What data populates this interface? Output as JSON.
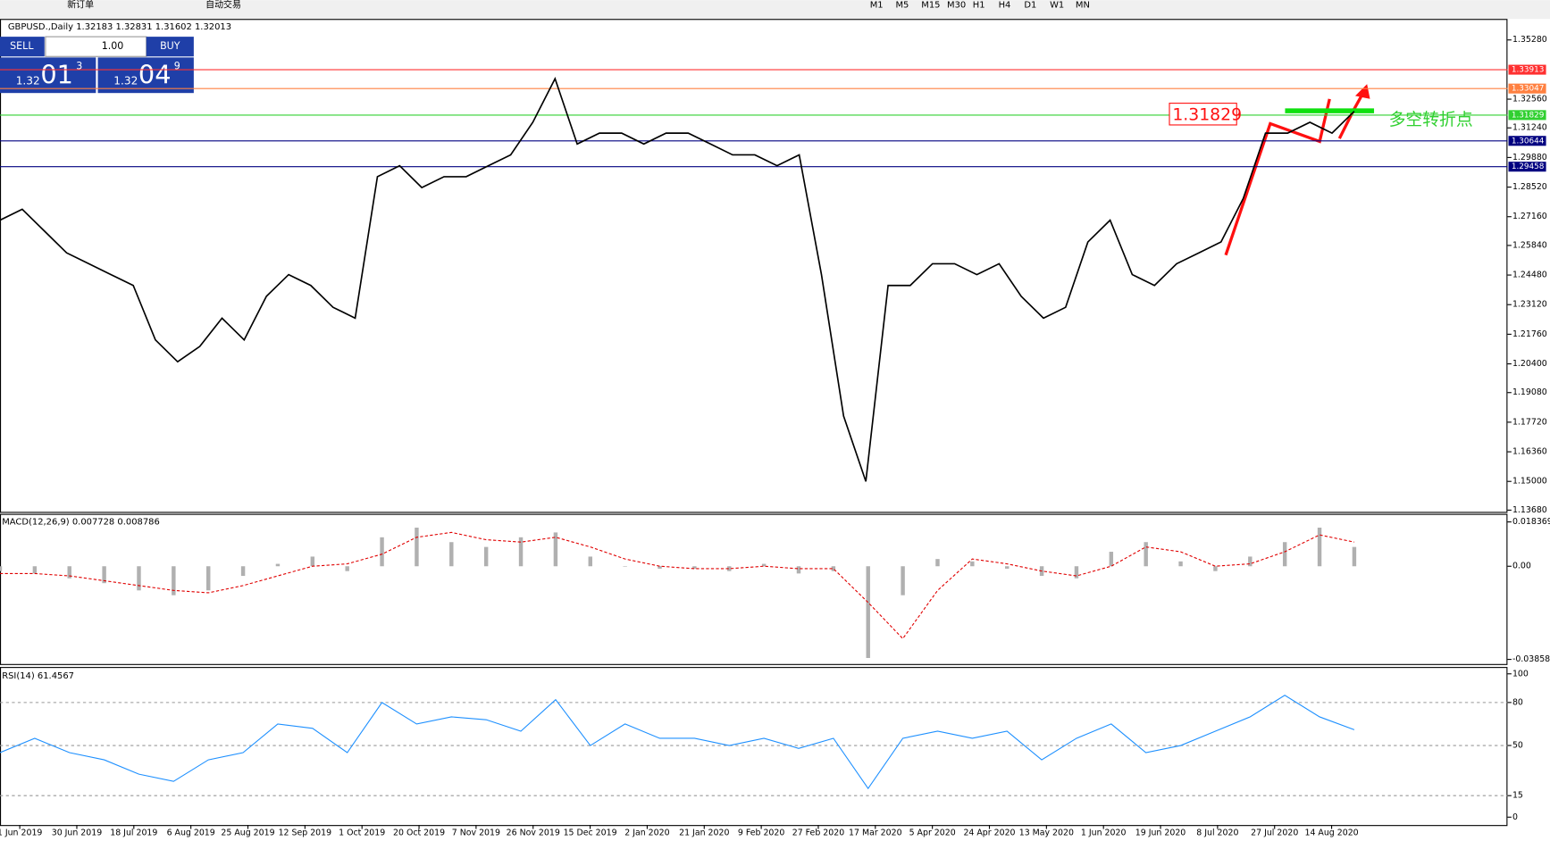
{
  "toolbar": {
    "new_order": "新订单",
    "auto_trading": "自动交易",
    "timeframes": [
      "M1",
      "M5",
      "M15",
      "M30",
      "H1",
      "H4",
      "D1",
      "W1",
      "MN"
    ]
  },
  "trade_panel": {
    "sell": "SELL",
    "lot": "1.00",
    "buy": "BUY",
    "bid": {
      "big": "1.32",
      "main": "01",
      "small": "3"
    },
    "ask": {
      "big": "1.32",
      "main": "04",
      "small": "9"
    }
  },
  "time_axis": [
    "1 Jun 2019",
    "30 Jun 2019",
    "18 Jul 2019",
    "6 Aug 2019",
    "25 Aug 2019",
    "12 Sep 2019",
    "1 Oct 2019",
    "20 Oct 2019",
    "7 Nov 2019",
    "26 Nov 2019",
    "15 Dec 2019",
    "2 Jan 2020",
    "21 Jan 2020",
    "9 Feb 2020",
    "27 Feb 2020",
    "17 Mar 2020",
    "5 Apr 2020",
    "24 Apr 2020",
    "13 May 2020",
    "1 Jun 2020",
    "19 Jun 2020",
    "8 Jul 2020",
    "27 Jul 2020",
    "14 Aug 2020"
  ],
  "chart_data": [
    {
      "type": "line",
      "title": "GBPUSD.,Daily  1.32183 1.32831 1.31602 1.32013",
      "color": "#000000",
      "values": [
        1.27,
        1.275,
        1.265,
        1.255,
        1.25,
        1.245,
        1.24,
        1.215,
        1.205,
        1.212,
        1.225,
        1.215,
        1.235,
        1.245,
        1.24,
        1.23,
        1.225,
        1.29,
        1.295,
        1.285,
        1.29,
        1.29,
        1.295,
        1.3,
        1.315,
        1.335,
        1.305,
        1.31,
        1.31,
        1.305,
        1.31,
        1.31,
        1.305,
        1.3,
        1.3,
        1.295,
        1.3,
        1.245,
        1.18,
        1.15,
        1.24,
        1.24,
        1.25,
        1.25,
        1.245,
        1.25,
        1.235,
        1.225,
        1.23,
        1.26,
        1.27,
        1.245,
        1.24,
        1.25,
        1.255,
        1.26,
        1.28,
        1.31,
        1.31,
        1.315,
        1.31,
        1.32
      ],
      "ylim": [
        1.136,
        1.362
      ],
      "yticks": [
        {
          "value": 1.3528,
          "label": "1.35280"
        },
        {
          "value": 1.3256,
          "label": "1.32560"
        },
        {
          "value": 1.3124,
          "label": "1.31240"
        },
        {
          "value": 1.2988,
          "label": "1.29880"
        },
        {
          "value": 1.2852,
          "label": "1.28520"
        },
        {
          "value": 1.2716,
          "label": "1.27160"
        },
        {
          "value": 1.2584,
          "label": "1.25840"
        },
        {
          "value": 1.2448,
          "label": "1.24480"
        },
        {
          "value": 1.2312,
          "label": "1.23120"
        },
        {
          "value": 1.2176,
          "label": "1.21760"
        },
        {
          "value": 1.204,
          "label": "1.20400"
        },
        {
          "value": 1.1908,
          "label": "1.19080"
        },
        {
          "value": 1.1772,
          "label": "1.17720"
        },
        {
          "value": 1.1636,
          "label": "1.16360"
        },
        {
          "value": 1.15,
          "label": "1.15000"
        },
        {
          "value": 1.1368,
          "label": "1.13680"
        }
      ],
      "levels": [
        {
          "value": 1.33913,
          "color": "#ff3030"
        },
        {
          "value": 1.33047,
          "color": "#ff8040"
        },
        {
          "value": 1.31829,
          "color": "#30d030"
        },
        {
          "value": 1.30644,
          "color": "#000080"
        },
        {
          "value": 1.29458,
          "color": "#000080"
        }
      ],
      "annotations": [
        "1.31829",
        "多空转折点"
      ]
    },
    {
      "type": "bar",
      "title": "MACD(12,26,9) 0.007728 0.008786",
      "color": "#b0b0b0",
      "signal_color": "#e00000",
      "values": [
        -0.002,
        -0.003,
        -0.005,
        -0.007,
        -0.01,
        -0.012,
        -0.01,
        -0.004,
        0.001,
        0.004,
        -0.002,
        0.012,
        0.016,
        0.01,
        0.008,
        0.012,
        0.014,
        0.004,
        0.0,
        -0.001,
        -0.001,
        -0.002,
        0.001,
        -0.003,
        -0.002,
        -0.038,
        -0.012,
        0.003,
        0.002,
        -0.001,
        -0.004,
        -0.005,
        0.006,
        0.01,
        0.002,
        -0.002,
        0.004,
        0.01,
        0.016,
        0.008
      ],
      "signal": [
        -0.003,
        -0.003,
        -0.004,
        -0.006,
        -0.008,
        -0.01,
        -0.011,
        -0.008,
        -0.004,
        0.0,
        0.001,
        0.005,
        0.012,
        0.014,
        0.011,
        0.01,
        0.012,
        0.008,
        0.003,
        0.0,
        -0.001,
        -0.001,
        0.0,
        -0.001,
        -0.001,
        -0.015,
        -0.03,
        -0.01,
        0.003,
        0.001,
        -0.002,
        -0.004,
        0.0,
        0.008,
        0.006,
        0.0,
        0.001,
        0.006,
        0.013,
        0.01
      ],
      "ylim": [
        -0.0405,
        0.0213
      ],
      "yticks": [
        0.018369,
        {
          "value": 0,
          "label": "0.00"
        },
        -0.038585
      ]
    },
    {
      "type": "line",
      "title": "RSI(14) 61.4567",
      "color": "#1e90ff",
      "values": [
        45,
        55,
        45,
        40,
        30,
        25,
        40,
        45,
        65,
        62,
        45,
        80,
        65,
        70,
        68,
        60,
        82,
        50,
        65,
        55,
        55,
        50,
        55,
        48,
        55,
        20,
        55,
        60,
        55,
        60,
        40,
        55,
        65,
        45,
        50,
        60,
        70,
        85,
        70,
        61
      ],
      "ylim": [
        -5.5,
        104.1
      ],
      "yticks": [
        100,
        80,
        50,
        15,
        0
      ],
      "levels": [
        80,
        50,
        15
      ]
    }
  ]
}
